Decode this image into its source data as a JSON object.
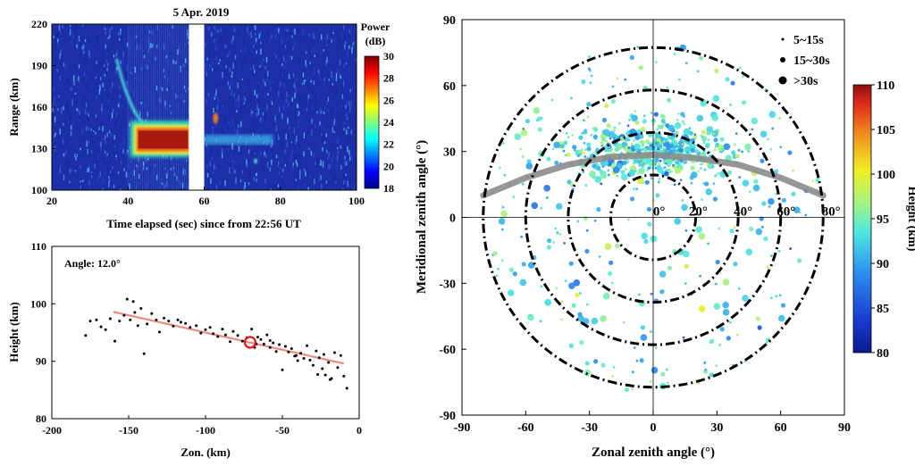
{
  "chart_data": [
    {
      "type": "heatmap",
      "title": "5 Apr. 2019",
      "xlabel": "Time elapsed (sec) since from 22:56 UT",
      "ylabel": "Range (km)",
      "xlim": [
        20,
        100
      ],
      "ylim": [
        100,
        220
      ],
      "xticks": [
        "20",
        "40",
        "60",
        "80",
        "100"
      ],
      "yticks": [
        "100",
        "130",
        "160",
        "190",
        "220"
      ],
      "data_gap_sec": [
        56,
        60
      ],
      "echo_features": [
        {
          "name": "main echo",
          "t_start": 42,
          "t_end": 56,
          "range_km": [
            128,
            145
          ],
          "power_db": 30
        },
        {
          "name": "descending trail",
          "t_start": 37,
          "t_end": 44,
          "range_km": [
            145,
            195
          ],
          "power_db": 22
        },
        {
          "name": "weak trail",
          "t_start": 60,
          "t_end": 78,
          "range_km": [
            133,
            140
          ],
          "power_db": 21
        },
        {
          "name": "blob",
          "t": 63,
          "range_km": 152,
          "power_db": 27
        }
      ],
      "colorbar": {
        "title_line1": "Power",
        "title_line2": "(dB)",
        "min": 18,
        "max": 30,
        "ticks": [
          "30",
          "28",
          "26",
          "24",
          "22",
          "20",
          "18"
        ]
      }
    },
    {
      "type": "scatter",
      "annotation": "Angle: 12.0°",
      "xlabel": "Zon. (km)",
      "ylabel": "Height (km)",
      "xlim": [
        -200,
        0
      ],
      "ylim": [
        80,
        110
      ],
      "xticks": [
        "-200",
        "-150",
        "-100",
        "-50",
        "0"
      ],
      "yticks": [
        "80",
        "90",
        "100",
        "110"
      ],
      "fit_line": {
        "x": [
          -160,
          -10
        ],
        "y": [
          98.6,
          89.6
        ],
        "color": "#f08a80"
      },
      "highlight": {
        "x": -71,
        "y": 93.3,
        "color": "#e8141b"
      },
      "points": [
        [
          -178,
          94.5
        ],
        [
          -175,
          97
        ],
        [
          -171,
          97.2
        ],
        [
          -168,
          96
        ],
        [
          -165,
          95.5
        ],
        [
          -162,
          97.4
        ],
        [
          -159,
          93.5
        ],
        [
          -156,
          97
        ],
        [
          -153,
          98
        ],
        [
          -151,
          100.8
        ],
        [
          -149,
          97.2
        ],
        [
          -147,
          100.4
        ],
        [
          -146,
          98.5
        ],
        [
          -144,
          96.2
        ],
        [
          -142,
          99.2
        ],
        [
          -140,
          91.3
        ],
        [
          -138,
          96.5
        ],
        [
          -135,
          98.3
        ],
        [
          -132,
          97.2
        ],
        [
          -130,
          95.1
        ],
        [
          -127,
          97.5
        ],
        [
          -124,
          97
        ],
        [
          -121,
          96.1
        ],
        [
          -118,
          97.2
        ],
        [
          -116,
          96.8
        ],
        [
          -113,
          96.6
        ],
        [
          -110,
          95.9
        ],
        [
          -106,
          96.2
        ],
        [
          -103,
          94.9
        ],
        [
          -100,
          95.5
        ],
        [
          -97,
          95.9
        ],
        [
          -95,
          94.8
        ],
        [
          -92,
          94.3
        ],
        [
          -89,
          95.6
        ],
        [
          -87,
          94.6
        ],
        [
          -84,
          93.4
        ],
        [
          -82,
          95.2
        ],
        [
          -79,
          94.5
        ],
        [
          -76,
          93.5
        ],
        [
          -73,
          94.1
        ],
        [
          -70,
          95.6
        ],
        [
          -68,
          92.4
        ],
        [
          -66,
          94.2
        ],
        [
          -64,
          93.8
        ],
        [
          -62,
          93
        ],
        [
          -60,
          94.6
        ],
        [
          -58,
          92.4
        ],
        [
          -56,
          93.2
        ],
        [
          -54,
          91.7
        ],
        [
          -52,
          92.9
        ],
        [
          -50,
          88.5
        ],
        [
          -48,
          92.6
        ],
        [
          -46,
          91.6
        ],
        [
          -44,
          92.2
        ],
        [
          -42,
          90.9
        ],
        [
          -40,
          90.1
        ],
        [
          -38,
          91.4
        ],
        [
          -36,
          90.5
        ],
        [
          -34,
          92.7
        ],
        [
          -32,
          90.2
        ],
        [
          -30,
          89.3
        ],
        [
          -28,
          91.8
        ],
        [
          -26,
          90.6
        ],
        [
          -24,
          88.7
        ],
        [
          -22,
          87.6
        ],
        [
          -20,
          89.8
        ],
        [
          -18,
          87
        ],
        [
          -16,
          91.5
        ],
        [
          -14,
          88.9
        ],
        [
          -12,
          91
        ],
        [
          -10,
          87.4
        ],
        [
          -8,
          85.3
        ],
        [
          -67,
          93
        ],
        [
          -58,
          93.6
        ],
        [
          -41,
          91
        ],
        [
          -23,
          91.2
        ],
        [
          -19,
          86.8
        ],
        [
          -27,
          87.7
        ]
      ]
    },
    {
      "type": "scatter",
      "subtype": "polar sky map",
      "xlabel": "Zonal zenith angle (°)",
      "ylabel": "Meridional zenith angle (°)",
      "xlim": [
        -90,
        90
      ],
      "ylim": [
        -90,
        90
      ],
      "xticks": [
        "-90",
        "-60",
        "-30",
        "0",
        "30",
        "60",
        "90"
      ],
      "yticks": [
        "90",
        "60",
        "30",
        "0",
        "-30",
        "-60",
        "-90"
      ],
      "ring_labels": [
        "0°",
        "20°",
        "40°",
        "60°",
        "80°"
      ],
      "ring_zenith_deg": [
        20,
        40,
        60,
        80
      ],
      "legend": {
        "placement": "top-right",
        "entries": [
          "5~15s",
          "15~30s",
          ">30s"
        ]
      },
      "colorbar": {
        "title": "Height (km)",
        "min": 80,
        "max": 110,
        "ticks": [
          "110",
          "105",
          "100",
          "95",
          "90",
          "85",
          "80"
        ]
      },
      "arc_curve": {
        "x": [
          -80,
          -60,
          -40,
          -20,
          0,
          20,
          40,
          60,
          80
        ],
        "y": [
          10,
          18,
          24,
          27.5,
          28.5,
          27,
          24,
          18,
          10
        ],
        "color": "#8c8c8c"
      },
      "n_echoes": 900,
      "echo_distribution": "dense band at meridional 15-50°, sparse elsewhere within 80° ring"
    }
  ]
}
